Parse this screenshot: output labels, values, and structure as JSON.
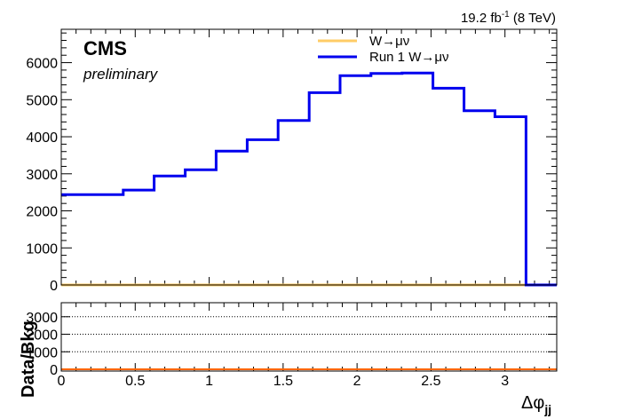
{
  "header": {
    "lumi_label": "19.2 fb",
    "lumi_exp": "-1",
    "energy_label": " (8 TeV)"
  },
  "labels": {
    "experiment": "CMS",
    "status": "preliminary"
  },
  "colors": {
    "run1_line": "#0000ee",
    "w_line": "#ffcc66",
    "ratio_line": "#ff6600",
    "frame": "#000000"
  },
  "chart_data": [
    {
      "type": "line",
      "style": "step-histogram",
      "xlim": [
        0,
        3.35
      ],
      "ylim": [
        0,
        6900
      ],
      "yticks": [
        0,
        1000,
        2000,
        3000,
        4000,
        5000,
        6000
      ],
      "ytick_labels": [
        "0",
        "1000",
        "2000",
        "3000",
        "4000",
        "5000",
        "6000"
      ],
      "legend_placement": "top-center",
      "series": [
        {
          "name": "W→μν",
          "color": "#ffcc66",
          "bin_edges": [
            0,
            3.35
          ],
          "values": [
            0
          ]
        },
        {
          "name": "Run 1 W→μν",
          "color": "#0000ee",
          "bin_edges": [
            0,
            0.419,
            0.628,
            0.838,
            1.047,
            1.257,
            1.466,
            1.676,
            1.885,
            2.094,
            2.304,
            2.513,
            2.723,
            2.932,
            3.142,
            3.35
          ],
          "values": [
            2440,
            2560,
            2940,
            3110,
            3610,
            3920,
            4440,
            5190,
            5650,
            5710,
            5720,
            5310,
            4700,
            4540,
            0
          ]
        }
      ]
    },
    {
      "type": "line",
      "style": "ratio-panel",
      "xlabel": "Δφ",
      "xlabel_sub": "jj",
      "ylabel": "Data/Bkg",
      "xlim": [
        0,
        3.35
      ],
      "ylim": [
        -100,
        3800
      ],
      "xticks": [
        0,
        0.5,
        1,
        1.5,
        2,
        2.5,
        3
      ],
      "xtick_labels": [
        "0",
        "0.5",
        "1",
        "1.5",
        "2",
        "2.5",
        "3"
      ],
      "yticks": [
        0,
        1000,
        2000,
        3000
      ],
      "ytick_labels": [
        "0",
        "1000",
        "2000",
        "3000"
      ],
      "grid": "dotted-horizontal",
      "series": [
        {
          "color": "#ff6600",
          "bin_edges": [
            0,
            3.35
          ],
          "values": [
            0
          ]
        }
      ]
    }
  ]
}
